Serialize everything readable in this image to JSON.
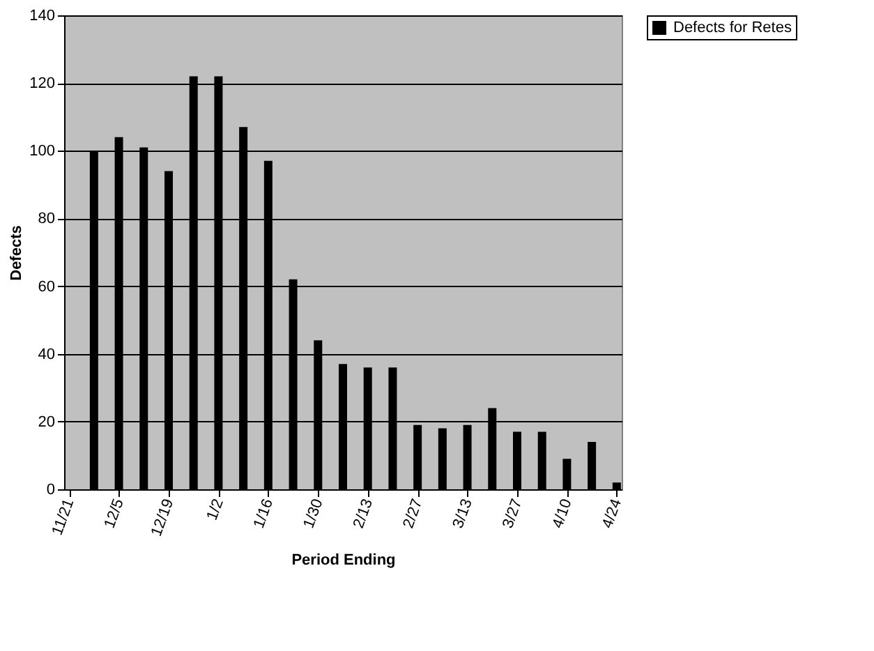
{
  "chart_data": {
    "type": "bar",
    "xlabel": "Period Ending",
    "ylabel": "Defects",
    "categories": [
      "11/21",
      null,
      "12/5",
      null,
      "12/19",
      null,
      "1/2",
      null,
      "1/16",
      null,
      "1/30",
      null,
      "2/13",
      null,
      "2/27",
      null,
      "3/13",
      null,
      "3/27",
      null,
      "4/10",
      null,
      "4/24"
    ],
    "series": [
      {
        "name": "Defects for Retes",
        "color": "#000000",
        "values": [
          null,
          100,
          104,
          101,
          94,
          122,
          122,
          107,
          97,
          62,
          44,
          37,
          36,
          36,
          19,
          18,
          19,
          24,
          17,
          17,
          9,
          14,
          2
        ]
      }
    ],
    "ylim": [
      0,
      140
    ],
    "yticks": [
      0,
      20,
      40,
      60,
      80,
      100,
      120,
      140
    ],
    "grid": "y",
    "legend": "right"
  }
}
